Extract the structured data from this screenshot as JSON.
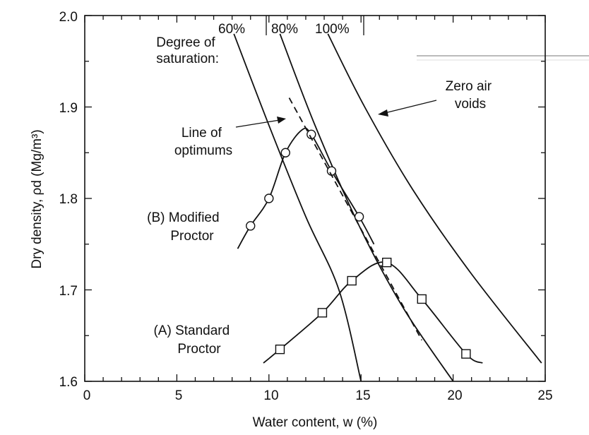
{
  "chart_data": {
    "type": "line",
    "title": "",
    "xlabel": "Water content, w (%)",
    "ylabel": "Dry density, ρd (Mg/m³)",
    "xlim": [
      0,
      25
    ],
    "ylim": [
      1.6,
      2.0
    ],
    "x_ticks": [
      "0",
      "5",
      "10",
      "15",
      "20",
      "25"
    ],
    "y_ticks": [
      "1.6",
      "1.7",
      "1.8",
      "1.9",
      "2.0"
    ],
    "grid": false,
    "saturation_lines": {
      "title": "Degree of saturation:",
      "lines": [
        {
          "name": "60%",
          "points": [
            [
              8.1,
              1.98
            ],
            [
              10.0,
              1.88
            ],
            [
              12.0,
              1.78
            ],
            [
              13.8,
              1.7
            ],
            [
              15.0,
              1.6
            ]
          ]
        },
        {
          "name": "80%",
          "points": [
            [
              10.6,
              1.98
            ],
            [
              12.5,
              1.88
            ],
            [
              14.9,
              1.77
            ],
            [
              17.3,
              1.68
            ],
            [
              20.0,
              1.6
            ]
          ]
        },
        {
          "name": "100%",
          "points": [
            [
              13.2,
              1.98
            ],
            [
              15.2,
              1.9
            ],
            [
              17.8,
              1.81
            ],
            [
              20.9,
              1.72
            ],
            [
              24.8,
              1.62
            ]
          ]
        }
      ]
    },
    "series": [
      {
        "name": "(B) Modified Proctor",
        "marker": "circle",
        "x": [
          9.0,
          10.0,
          10.9,
          12.3,
          13.4,
          14.9
        ],
        "y": [
          1.77,
          1.8,
          1.85,
          1.87,
          1.83,
          1.78
        ],
        "curve": [
          [
            8.3,
            1.745
          ],
          [
            9.0,
            1.77
          ],
          [
            10.0,
            1.8
          ],
          [
            10.9,
            1.85
          ],
          [
            11.8,
            1.875
          ],
          [
            12.3,
            1.87
          ],
          [
            13.4,
            1.83
          ],
          [
            14.9,
            1.78
          ],
          [
            15.7,
            1.75
          ]
        ]
      },
      {
        "name": "(A) Standard Proctor",
        "marker": "square",
        "x": [
          10.6,
          12.9,
          14.5,
          16.4,
          18.3,
          20.7
        ],
        "y": [
          1.635,
          1.675,
          1.71,
          1.73,
          1.69,
          1.63
        ],
        "curve": [
          [
            9.7,
            1.62
          ],
          [
            10.6,
            1.635
          ],
          [
            12.9,
            1.675
          ],
          [
            14.5,
            1.71
          ],
          [
            16.4,
            1.73
          ],
          [
            18.3,
            1.69
          ],
          [
            20.7,
            1.63
          ],
          [
            21.6,
            1.62
          ]
        ]
      }
    ],
    "line_of_optimums": {
      "points": [
        [
          11.1,
          1.91
        ],
        [
          18.3,
          1.645
        ]
      ]
    },
    "annotations": {
      "line_of_optimums": "Line of\noptimums",
      "zero_air_voids": "Zero air\nvoids"
    }
  }
}
